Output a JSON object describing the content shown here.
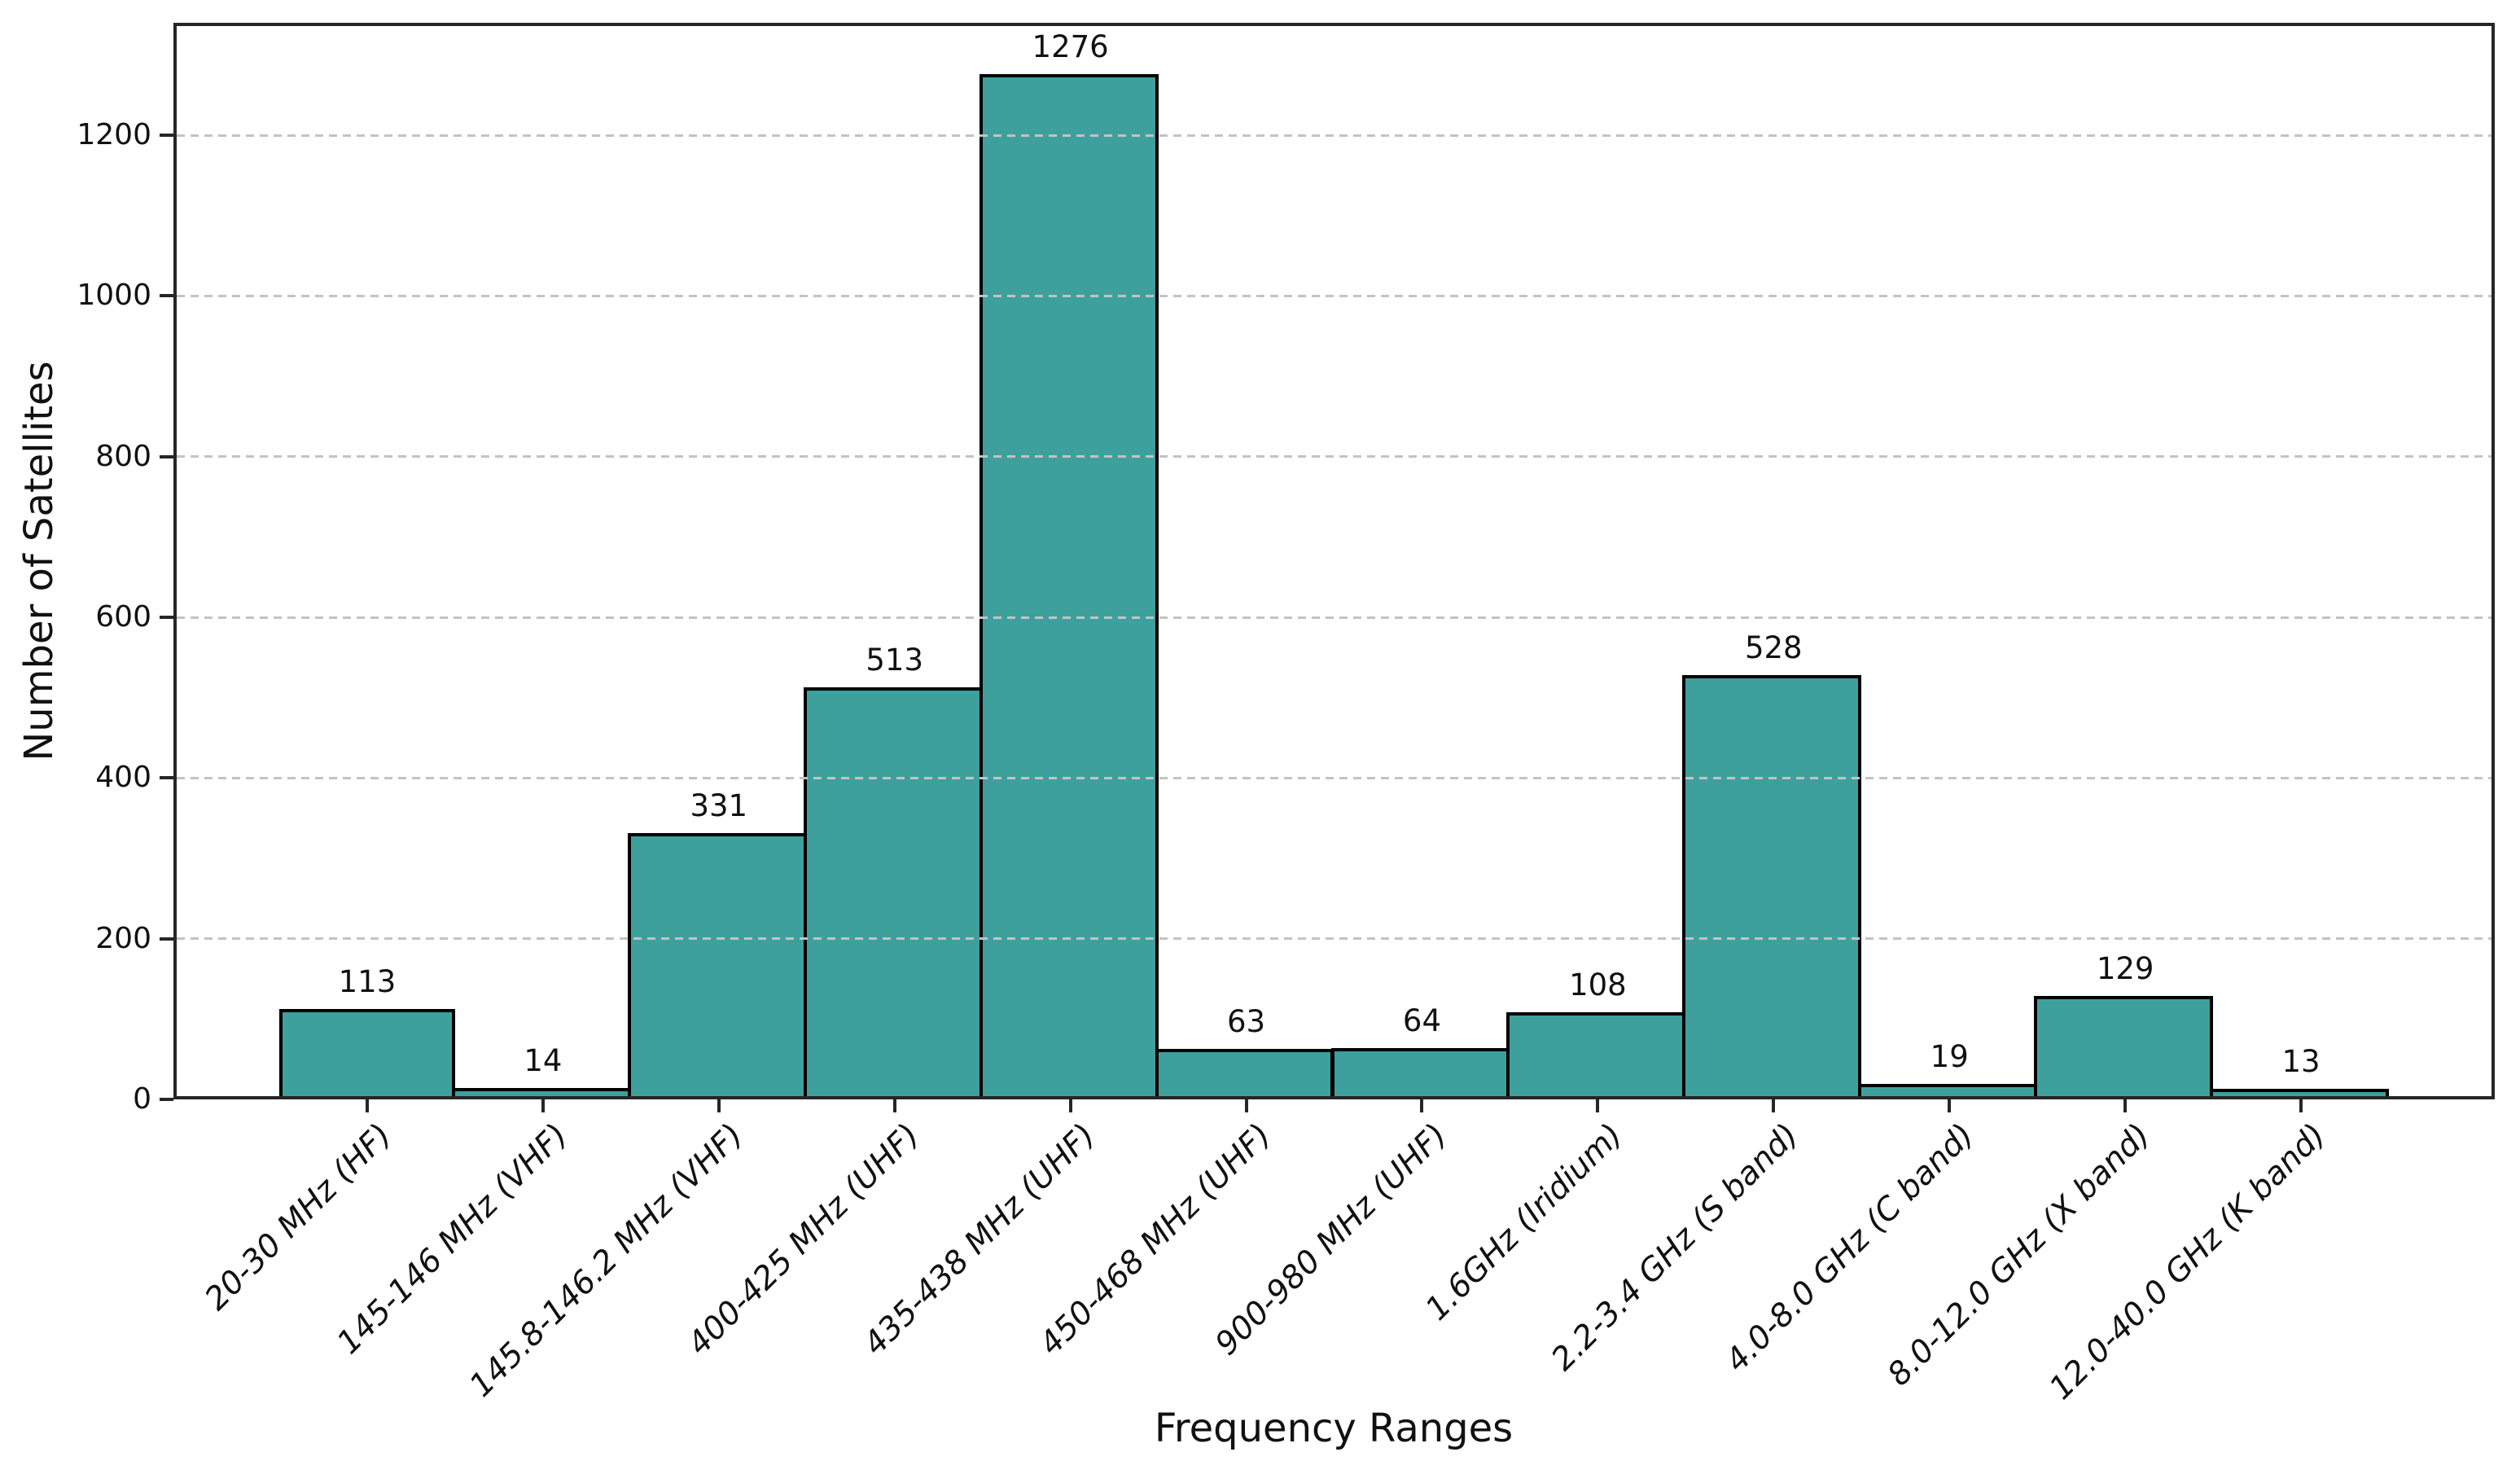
{
  "chart_data": {
    "type": "bar",
    "title": "",
    "xlabel": "Frequency Ranges",
    "ylabel": "Number of Satellites",
    "categories": [
      "20-30 MHz (HF)",
      "145-146 MHz (VHF)",
      "145.8-146.2 MHz (VHF)",
      "400-425 MHz (UHF)",
      "435-438 MHz (UHF)",
      "450-468 MHz (UHF)",
      "900-980 MHz (UHF)",
      "1.6GHz (Iridium)",
      "2.2-3.4 GHz (S band)",
      "4.0-8.0 GHz (C band)",
      "8.0-12.0 GHz (X band)",
      "12.0-40.0 GHz (K band)"
    ],
    "values": [
      113,
      14,
      331,
      513,
      1276,
      63,
      64,
      108,
      528,
      19,
      129,
      13
    ],
    "yticks": [
      0,
      200,
      400,
      600,
      800,
      1000,
      1200
    ],
    "ylim": [
      0,
      1340
    ],
    "grid": "horizontal-dashed",
    "legend": "none",
    "value_labels": true,
    "colors": {
      "bar_fill": "#3EA09D",
      "bar_edge": "#000000",
      "gridline": "#C3C3C3",
      "spine": "#262626",
      "text": "#111111"
    }
  }
}
